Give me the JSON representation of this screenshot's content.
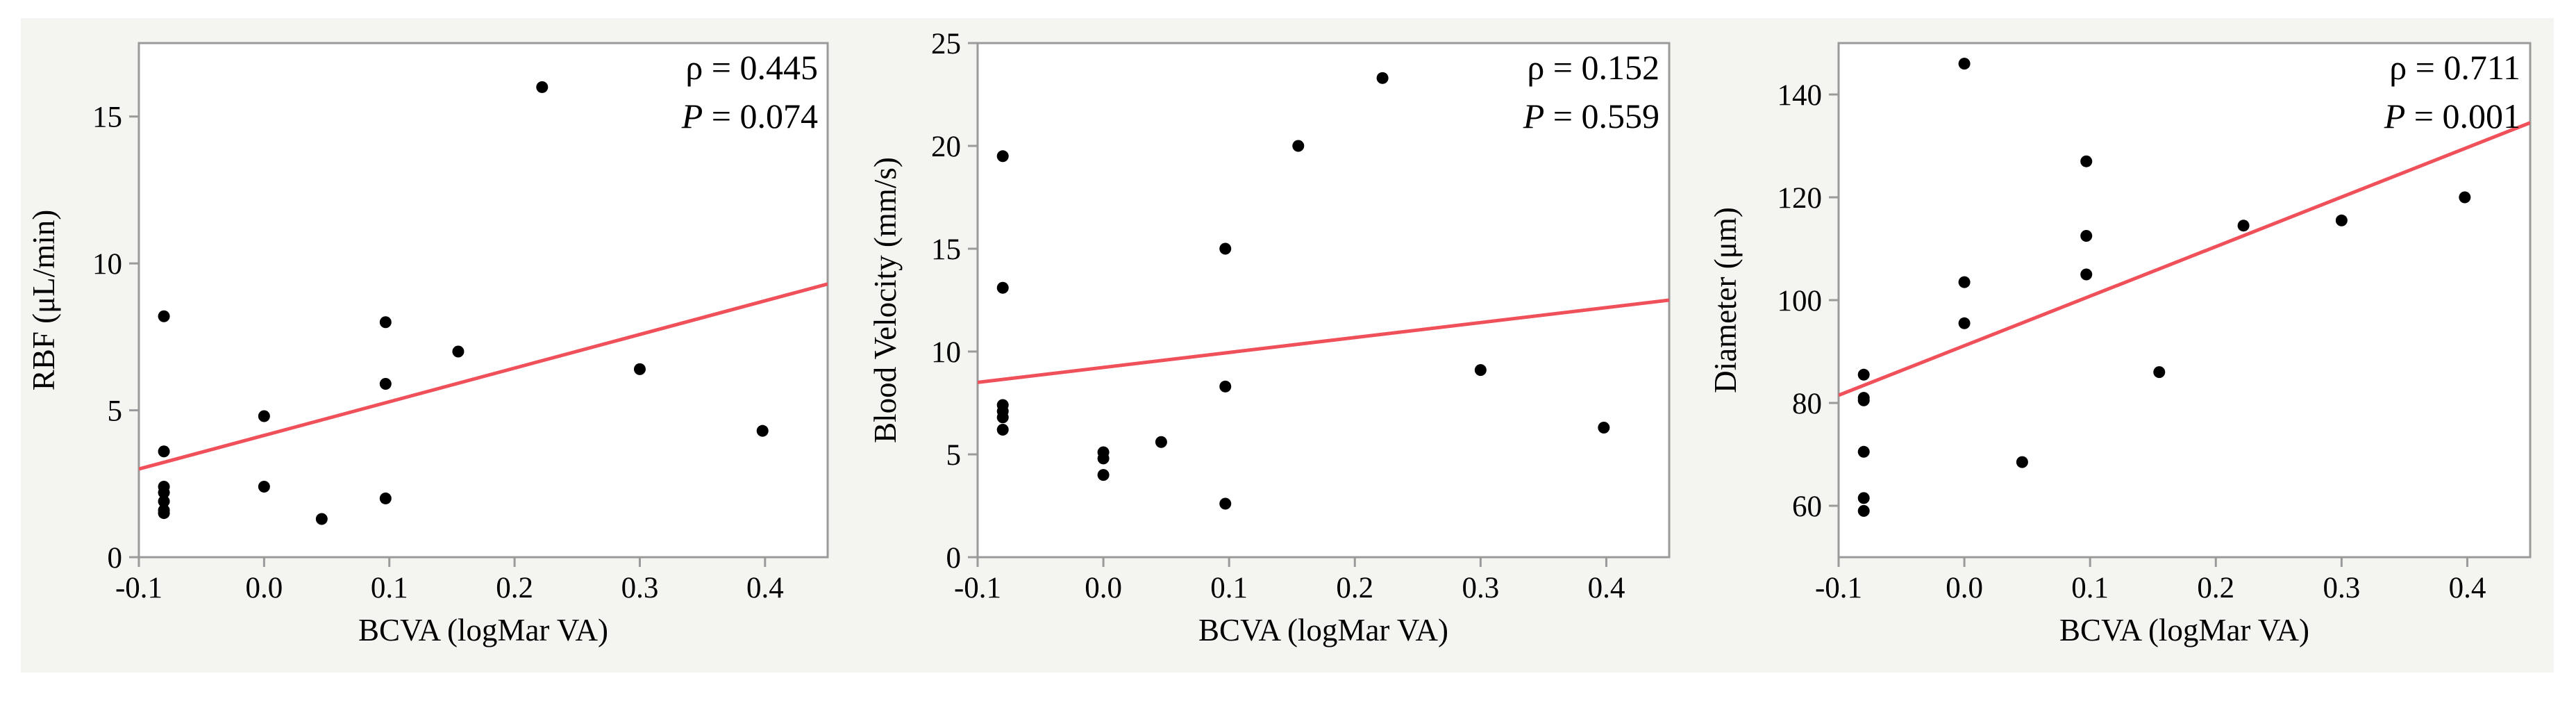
{
  "figure": {
    "background_color": "#f4f4f1",
    "plot_background": "#ffffff",
    "axis_color": "#9a9a9a",
    "point_color": "#000000",
    "line_color": "#f0505a"
  },
  "chart_data": [
    {
      "type": "scatter",
      "title": "",
      "xlabel": "BCVA (logMar VA)",
      "ylabel": "RBF (μL/min)",
      "xlim": [
        -0.1,
        0.45
      ],
      "ylim": [
        0,
        17.5
      ],
      "xticks": [
        -0.1,
        0.0,
        0.1,
        0.2,
        0.3,
        0.4
      ],
      "xtick_labels": [
        "-0.1",
        "0.0",
        "0.1",
        "0.2",
        "0.3",
        "0.4"
      ],
      "yticks": [
        0,
        5,
        10,
        15
      ],
      "ytick_labels": [
        "0",
        "5",
        "10",
        "15"
      ],
      "grid": false,
      "points": {
        "x": [
          -0.08,
          -0.08,
          -0.08,
          -0.08,
          -0.08,
          -0.08,
          -0.08,
          0.0,
          0.0,
          0.046,
          0.097,
          0.097,
          0.097,
          0.155,
          0.222,
          0.3,
          0.398
        ],
        "y": [
          8.2,
          3.6,
          2.4,
          2.2,
          1.9,
          1.6,
          1.5,
          4.8,
          2.4,
          1.3,
          8.0,
          5.9,
          2.0,
          7.0,
          16.0,
          6.4,
          4.3
        ]
      },
      "fit_line": {
        "x": [
          -0.1,
          0.45
        ],
        "y": [
          3.0,
          9.3
        ]
      },
      "annotation": {
        "rho_label": "ρ = 0.445",
        "p_italic": "P",
        "p_value": " = 0.074"
      }
    },
    {
      "type": "scatter",
      "title": "",
      "xlabel": "BCVA (logMar VA)",
      "ylabel": "Blood Velocity (mm/s)",
      "xlim": [
        -0.1,
        0.45
      ],
      "ylim": [
        0,
        25
      ],
      "xticks": [
        -0.1,
        0.0,
        0.1,
        0.2,
        0.3,
        0.4
      ],
      "xtick_labels": [
        "-0.1",
        "0.0",
        "0.1",
        "0.2",
        "0.3",
        "0.4"
      ],
      "yticks": [
        0,
        5,
        10,
        15,
        20,
        25
      ],
      "ytick_labels": [
        "0",
        "5",
        "10",
        "15",
        "20",
        "25"
      ],
      "grid": false,
      "points": {
        "x": [
          -0.08,
          -0.08,
          -0.08,
          -0.08,
          -0.08,
          -0.08,
          0.0,
          0.0,
          0.0,
          0.046,
          0.097,
          0.097,
          0.097,
          0.155,
          0.222,
          0.3,
          0.398
        ],
        "y": [
          19.5,
          13.1,
          7.4,
          7.1,
          6.8,
          6.2,
          5.1,
          4.8,
          4.0,
          5.6,
          15.0,
          8.3,
          2.6,
          20.0,
          23.3,
          9.1,
          6.3
        ]
      },
      "fit_line": {
        "x": [
          -0.1,
          0.45
        ],
        "y": [
          8.5,
          12.5
        ]
      },
      "annotation": {
        "rho_label": "ρ = 0.152",
        "p_italic": "P",
        "p_value": " = 0.559"
      }
    },
    {
      "type": "scatter",
      "title": "",
      "xlabel": "BCVA (logMar VA)",
      "ylabel": "Diameter (μm)",
      "xlim": [
        -0.1,
        0.45
      ],
      "ylim": [
        50,
        150
      ],
      "xticks": [
        -0.1,
        0.0,
        0.1,
        0.2,
        0.3,
        0.4
      ],
      "xtick_labels": [
        "-0.1",
        "0.0",
        "0.1",
        "0.2",
        "0.3",
        "0.4"
      ],
      "yticks": [
        60,
        80,
        100,
        120,
        140
      ],
      "ytick_labels": [
        "60",
        "80",
        "100",
        "120",
        "140"
      ],
      "grid": false,
      "points": {
        "x": [
          -0.08,
          -0.08,
          -0.08,
          -0.08,
          -0.08,
          -0.08,
          0.0,
          0.0,
          0.0,
          0.046,
          0.097,
          0.097,
          0.097,
          0.155,
          0.222,
          0.3,
          0.398
        ],
        "y": [
          85.5,
          81.0,
          80.5,
          70.5,
          61.5,
          59.0,
          146.0,
          103.5,
          95.5,
          68.5,
          127.0,
          112.5,
          105.0,
          86.0,
          114.5,
          115.5,
          120.0
        ]
      },
      "fit_line": {
        "x": [
          -0.1,
          0.45
        ],
        "y": [
          81.5,
          134.5
        ]
      },
      "annotation": {
        "rho_label": "ρ = 0.711",
        "p_italic": "P",
        "p_value": " = 0.001"
      }
    }
  ]
}
